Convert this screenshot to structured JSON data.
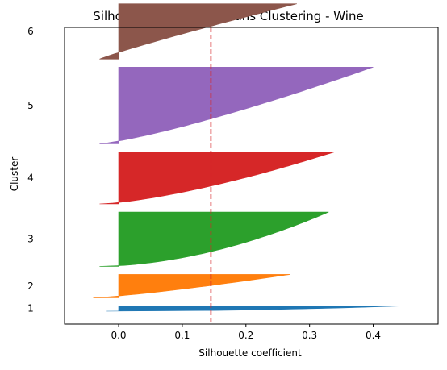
{
  "chart_data": {
    "type": "silhouette",
    "title": "Silhouette Plot for K-Means Clustering - Wine",
    "xlabel": "Silhouette coefficient",
    "ylabel": "Cluster",
    "xlim": [
      -0.085,
      0.502
    ],
    "x_ticks": [
      0.0,
      0.1,
      0.2,
      0.3,
      0.4
    ],
    "x_tick_labels": [
      "0.0",
      "0.1",
      "0.2",
      "0.3",
      "0.4"
    ],
    "average_silhouette": 0.145,
    "average_line_color": "#d62728",
    "grid": false,
    "clusters": [
      {
        "label": "1",
        "color": "#1f77b4",
        "size": 5,
        "min": -0.02,
        "max": 0.45,
        "shape": 0.5
      },
      {
        "label": "2",
        "color": "#ff7f0e",
        "size": 22,
        "min": -0.04,
        "max": 0.27,
        "shape": 0.8
      },
      {
        "label": "3",
        "color": "#2ca02c",
        "size": 51,
        "min": -0.03,
        "max": 0.33,
        "shape": 0.55
      },
      {
        "label": "4",
        "color": "#d62728",
        "size": 49,
        "min": -0.03,
        "max": 0.34,
        "shape": 0.7
      },
      {
        "label": "5",
        "color": "#9467bd",
        "size": 72,
        "min": -0.03,
        "max": 0.4,
        "shape": 0.8
      },
      {
        "label": "6",
        "color": "#8c564b",
        "size": 52,
        "min": -0.03,
        "max": 0.28,
        "shape": 1.1
      }
    ]
  }
}
